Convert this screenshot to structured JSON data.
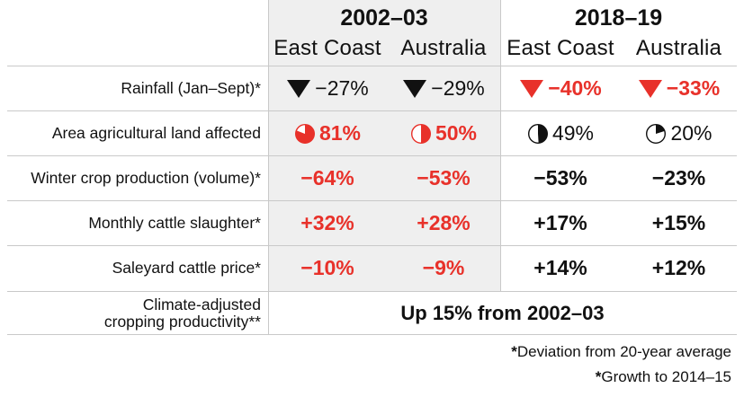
{
  "colors": {
    "red": "#e8312a",
    "black": "#111111",
    "shade": "#efefef"
  },
  "header": {
    "period_1": "2002–03",
    "period_2": "2018–19",
    "columns": [
      "East Coast",
      "Australia",
      "East Coast",
      "Australia"
    ]
  },
  "rows": [
    {
      "label": "Rainfall (Jan–Sept)*",
      "cells": [
        {
          "value": "−27%",
          "icon": "down-triangle-icon",
          "color": "black",
          "bold": false
        },
        {
          "value": "−29%",
          "icon": "down-triangle-icon",
          "color": "black",
          "bold": false
        },
        {
          "value": "−40%",
          "icon": "down-triangle-icon",
          "color": "red",
          "bold": true
        },
        {
          "value": "−33%",
          "icon": "down-triangle-icon",
          "color": "red",
          "bold": true
        }
      ]
    },
    {
      "label": "Area agricultural land affected",
      "cells": [
        {
          "value": "81%",
          "icon": "pie-icon",
          "share": 0.81,
          "color": "red",
          "bold": true
        },
        {
          "value": "50%",
          "icon": "pie-icon",
          "share": 0.5,
          "color": "red",
          "bold": true
        },
        {
          "value": "49%",
          "icon": "pie-icon",
          "share": 0.49,
          "color": "black",
          "bold": false
        },
        {
          "value": "20%",
          "icon": "pie-icon",
          "share": 0.2,
          "color": "black",
          "bold": false
        }
      ]
    },
    {
      "label": "Winter crop production (volume)*",
      "cells": [
        {
          "value": "−64%",
          "color": "red",
          "bold": true
        },
        {
          "value": "−53%",
          "color": "red",
          "bold": true
        },
        {
          "value": "−53%",
          "color": "black",
          "bold": true
        },
        {
          "value": "−23%",
          "color": "black",
          "bold": true
        }
      ]
    },
    {
      "label": "Monthly cattle slaughter*",
      "cells": [
        {
          "value": "+32%",
          "color": "red",
          "bold": true
        },
        {
          "value": "+28%",
          "color": "red",
          "bold": true
        },
        {
          "value": "+17%",
          "color": "black",
          "bold": true
        },
        {
          "value": "+15%",
          "color": "black",
          "bold": true
        }
      ]
    },
    {
      "label": "Saleyard cattle price*",
      "cells": [
        {
          "value": "−10%",
          "color": "red",
          "bold": true
        },
        {
          "value": "−9%",
          "color": "red",
          "bold": true
        },
        {
          "value": "+14%",
          "color": "black",
          "bold": true
        },
        {
          "value": "+12%",
          "color": "black",
          "bold": true
        }
      ]
    }
  ],
  "summary_row": {
    "label_line1": "Climate-adjusted",
    "label_line2": "cropping productivity**",
    "value": "Up 15% from 2002–03"
  },
  "footnotes": {
    "note1_marker": "*",
    "note1": "Deviation from 20-year average",
    "note2_marker": "*",
    "note2": "Growth to 2014–15"
  }
}
